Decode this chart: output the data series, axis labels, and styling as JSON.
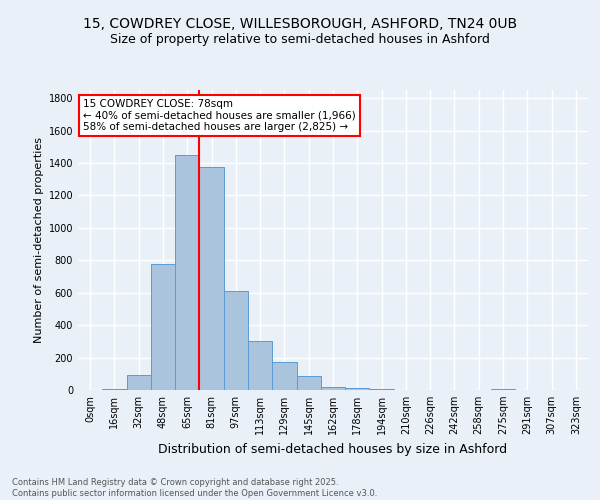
{
  "title1": "15, COWDREY CLOSE, WILLESBOROUGH, ASHFORD, TN24 0UB",
  "title2": "Size of property relative to semi-detached houses in Ashford",
  "xlabel": "Distribution of semi-detached houses by size in Ashford",
  "ylabel": "Number of semi-detached properties",
  "bins": [
    "0sqm",
    "16sqm",
    "32sqm",
    "48sqm",
    "65sqm",
    "81sqm",
    "97sqm",
    "113sqm",
    "129sqm",
    "145sqm",
    "162sqm",
    "178sqm",
    "194sqm",
    "210sqm",
    "226sqm",
    "242sqm",
    "258sqm",
    "275sqm",
    "291sqm",
    "307sqm",
    "323sqm"
  ],
  "values": [
    2,
    5,
    95,
    775,
    1450,
    1375,
    610,
    300,
    175,
    85,
    20,
    10,
    5,
    2,
    0,
    0,
    0,
    5,
    0,
    0,
    0
  ],
  "bar_color": "#aac4dd",
  "bar_edge_color": "#5b9bd5",
  "vline_color": "red",
  "annotation_text": "15 COWDREY CLOSE: 78sqm\n← 40% of semi-detached houses are smaller (1,966)\n58% of semi-detached houses are larger (2,825) →",
  "annotation_box_color": "white",
  "annotation_box_edge": "red",
  "ylim": [
    0,
    1850
  ],
  "yticks": [
    0,
    200,
    400,
    600,
    800,
    1000,
    1200,
    1400,
    1600,
    1800
  ],
  "footer1": "Contains HM Land Registry data © Crown copyright and database right 2025.",
  "footer2": "Contains public sector information licensed under the Open Government Licence v3.0.",
  "bg_color": "#eaf0f8",
  "grid_color": "white",
  "title_fontsize": 10,
  "subtitle_fontsize": 9,
  "ylabel_fontsize": 8,
  "xlabel_fontsize": 9,
  "tick_fontsize": 7,
  "footer_fontsize": 6
}
